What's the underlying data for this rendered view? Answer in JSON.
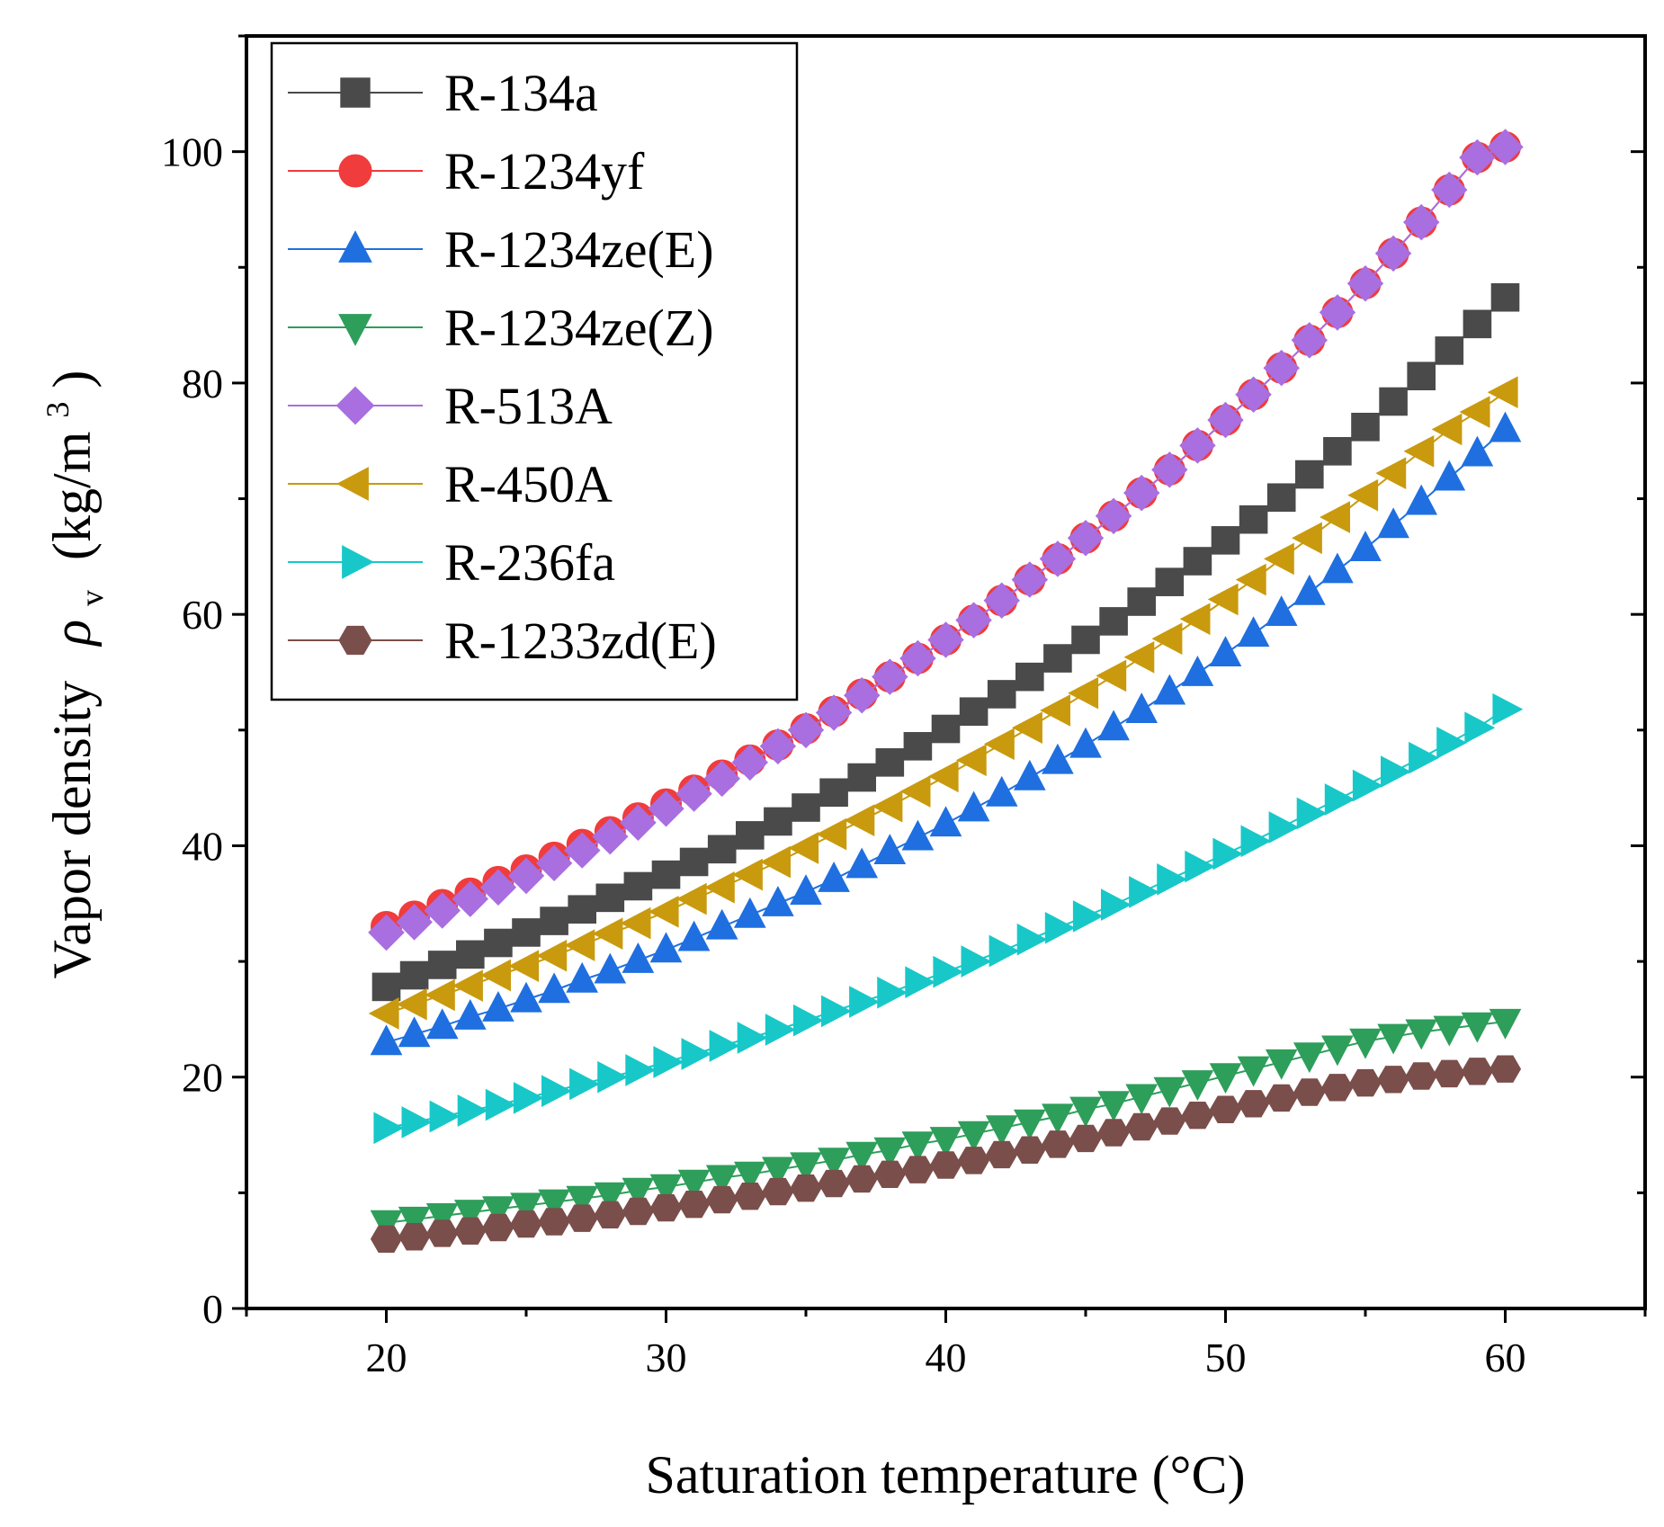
{
  "chart_data": {
    "type": "scatter",
    "title": "",
    "xlabel": "Saturation temperature (°C)",
    "ylabel_main": "Vapor density",
    "ylabel_symbol": "ρ",
    "ylabel_sub": "v",
    "ylabel_unit_prefix": "(kg/m",
    "ylabel_unit_exp": "3",
    "ylabel_unit_suffix": ")",
    "xlim": [
      15,
      65
    ],
    "ylim": [
      0,
      110
    ],
    "xticks": [
      20,
      30,
      40,
      50,
      60
    ],
    "yticks": [
      0,
      20,
      40,
      60,
      80,
      100
    ],
    "xtick_labels": [
      "20",
      "30",
      "40",
      "50",
      "60"
    ],
    "ytick_labels": [
      "0",
      "20",
      "40",
      "60",
      "80",
      "100"
    ],
    "legend_position": "top-left",
    "x": [
      20,
      21,
      22,
      23,
      24,
      25,
      26,
      27,
      28,
      29,
      30,
      31,
      32,
      33,
      34,
      35,
      36,
      37,
      38,
      39,
      40,
      41,
      42,
      43,
      44,
      45,
      46,
      47,
      48,
      49,
      50,
      51,
      52,
      53,
      54,
      55,
      56,
      57,
      58,
      59,
      60
    ],
    "series": [
      {
        "name": "R-134a",
        "marker": "square",
        "color": "#4a4a4a",
        "values": [
          27.8,
          28.8,
          29.7,
          30.6,
          31.6,
          32.5,
          33.5,
          34.5,
          35.5,
          36.5,
          37.5,
          38.6,
          39.7,
          40.9,
          42.1,
          43.3,
          44.6,
          45.9,
          47.2,
          48.6,
          50.1,
          51.6,
          53.1,
          54.6,
          56.2,
          57.8,
          59.4,
          61.1,
          62.8,
          64.6,
          66.4,
          68.2,
          70.1,
          72.1,
          74.1,
          76.2,
          78.4,
          80.6,
          82.8,
          85.1,
          87.4
        ]
      },
      {
        "name": "R-1234yf",
        "marker": "circle",
        "color": "#f03c3c",
        "values": [
          33.0,
          33.9,
          34.9,
          35.9,
          36.9,
          37.9,
          39.0,
          40.1,
          41.2,
          42.4,
          43.6,
          44.8,
          46.1,
          47.4,
          48.7,
          50.1,
          51.6,
          53.1,
          54.6,
          56.2,
          57.8,
          59.5,
          61.2,
          63.0,
          64.8,
          66.6,
          68.5,
          70.5,
          72.5,
          74.6,
          76.8,
          79.0,
          81.3,
          83.7,
          86.1,
          88.6,
          91.2,
          93.9,
          96.7,
          99.5,
          100.4
        ]
      },
      {
        "name": "R-1234ze(E)",
        "marker": "triangle-up",
        "color": "#1f6fe0",
        "values": [
          23.0,
          23.7,
          24.4,
          25.2,
          25.9,
          26.7,
          27.5,
          28.4,
          29.2,
          30.1,
          31.0,
          32.0,
          33.0,
          34.0,
          35.0,
          36.0,
          37.1,
          38.3,
          39.5,
          40.7,
          41.9,
          43.2,
          44.5,
          45.9,
          47.3,
          48.7,
          50.2,
          51.7,
          53.3,
          54.9,
          56.6,
          58.3,
          60.1,
          61.9,
          63.8,
          65.7,
          67.7,
          69.7,
          71.8,
          73.9,
          76.0
        ]
      },
      {
        "name": "R-1234ze(Z)",
        "marker": "triangle-down",
        "color": "#2e9e5b",
        "values": [
          7.4,
          7.7,
          8.0,
          8.3,
          8.6,
          8.9,
          9.2,
          9.5,
          9.8,
          10.2,
          10.5,
          10.9,
          11.3,
          11.6,
          12.0,
          12.4,
          12.8,
          13.3,
          13.7,
          14.2,
          14.6,
          15.1,
          15.6,
          16.1,
          16.6,
          17.2,
          17.7,
          18.3,
          18.9,
          19.5,
          20.1,
          20.7,
          21.3,
          21.9,
          22.5,
          23.1,
          23.5,
          23.9,
          24.2,
          24.5,
          24.8
        ]
      },
      {
        "name": "R-513A",
        "marker": "diamond",
        "color": "#a96ee0",
        "values": [
          32.5,
          33.4,
          34.4,
          35.4,
          36.4,
          37.4,
          38.5,
          39.6,
          40.8,
          42.0,
          43.2,
          44.5,
          45.8,
          47.2,
          48.6,
          50.0,
          51.5,
          53.0,
          54.6,
          56.2,
          57.8,
          59.5,
          61.2,
          63.0,
          64.8,
          66.6,
          68.5,
          70.5,
          72.5,
          74.6,
          76.8,
          79.0,
          81.3,
          83.7,
          86.1,
          88.6,
          91.2,
          93.9,
          96.7,
          99.5,
          100.4
        ]
      },
      {
        "name": "R-450A",
        "marker": "triangle-left",
        "color": "#c99a0e",
        "values": [
          25.5,
          26.3,
          27.1,
          27.9,
          28.8,
          29.6,
          30.5,
          31.4,
          32.4,
          33.3,
          34.3,
          35.4,
          36.4,
          37.5,
          38.6,
          39.8,
          41.0,
          42.2,
          43.4,
          44.7,
          46.0,
          47.4,
          48.8,
          50.2,
          51.7,
          53.2,
          54.7,
          56.3,
          57.9,
          59.6,
          61.3,
          63.0,
          64.8,
          66.6,
          68.4,
          70.3,
          72.2,
          74.1,
          76.0,
          77.5,
          79.2
        ]
      },
      {
        "name": "R-236fa",
        "marker": "triangle-right",
        "color": "#18c8c8",
        "values": [
          15.6,
          16.1,
          16.6,
          17.1,
          17.6,
          18.2,
          18.8,
          19.4,
          20.0,
          20.6,
          21.3,
          22.0,
          22.7,
          23.4,
          24.1,
          24.9,
          25.7,
          26.5,
          27.3,
          28.2,
          29.1,
          30.0,
          30.9,
          31.9,
          32.9,
          33.9,
          34.9,
          36.0,
          37.1,
          38.2,
          39.3,
          40.4,
          41.6,
          42.8,
          44.0,
          45.2,
          46.4,
          47.6,
          48.9,
          50.2,
          51.8
        ]
      },
      {
        "name": "R-1233zd(E)",
        "marker": "hexagon",
        "color": "#7a4e4a",
        "values": [
          6.0,
          6.2,
          6.5,
          6.7,
          7.0,
          7.3,
          7.5,
          7.8,
          8.1,
          8.4,
          8.7,
          9.0,
          9.4,
          9.7,
          10.1,
          10.4,
          10.8,
          11.2,
          11.6,
          12.0,
          12.4,
          12.8,
          13.3,
          13.7,
          14.2,
          14.7,
          15.2,
          15.7,
          16.2,
          16.7,
          17.2,
          17.7,
          18.2,
          18.7,
          19.1,
          19.5,
          19.8,
          20.1,
          20.3,
          20.5,
          20.7
        ]
      }
    ]
  }
}
